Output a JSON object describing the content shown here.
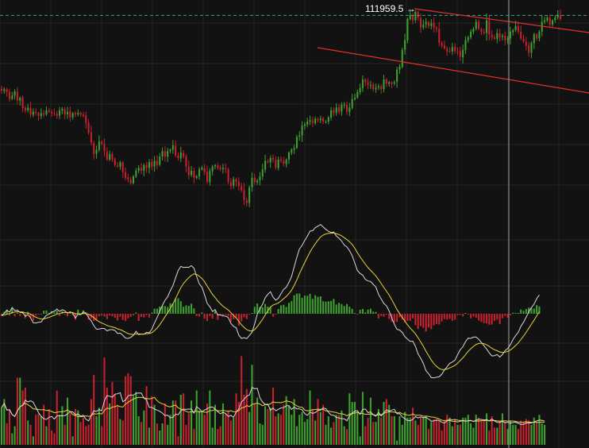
{
  "chart_data": [
    {
      "type": "candlestick",
      "panel": "price",
      "annotation": {
        "label": "111959.5",
        "arrow": "→"
      },
      "reference_line": {
        "style": "dashed",
        "color": "#2fa882",
        "value": 111959.5
      },
      "trend_channel": {
        "color": "#e03030"
      },
      "colors": {
        "up": "#3ea12f",
        "down": "#c8202f"
      },
      "grid": true,
      "closes": [
        106600,
        106700,
        106500,
        106000,
        106250,
        106550,
        105900,
        106100,
        105350,
        105200,
        105400,
        104900,
        105100,
        105000,
        104800,
        105000,
        104900,
        105200,
        105100,
        105000,
        104950,
        104800,
        105200,
        105300,
        104900,
        105100,
        104700,
        105000,
        104900,
        105000,
        104900,
        104800,
        104300,
        103600,
        102900,
        102100,
        102400,
        103000,
        102800,
        102300,
        101700,
        102100,
        101700,
        101300,
        101200,
        101500,
        100800,
        100400,
        100300,
        100000,
        100500,
        100900,
        101100,
        100900,
        101300,
        101100,
        101500,
        101200,
        101600,
        101300,
        101900,
        102300,
        101900,
        102300,
        102400,
        102700,
        102000,
        101800,
        102200,
        101900,
        101200,
        100600,
        100900,
        100400,
        100500,
        101000,
        101100,
        100800,
        100100,
        100900,
        101200,
        101300,
        101100,
        101000,
        101100,
        101000,
        100100,
        99800,
        100300,
        100100,
        99800,
        99500,
        98800,
        98600,
        99700,
        100400,
        100100,
        100200,
        100500,
        101000,
        101600,
        101500,
        101800,
        101700,
        101100,
        101700,
        101600,
        101400,
        101700,
        102200,
        102400,
        102500,
        103300,
        103400,
        104100,
        104200,
        104400,
        104500,
        104300,
        104600,
        104500,
        104600,
        104400,
        104400,
        104700,
        105200,
        105000,
        105400,
        105100,
        105600,
        105600,
        105100,
        105400,
        106000,
        106100,
        106500,
        106800,
        107400,
        107200,
        107000,
        107000,
        106700,
        106800,
        106900,
        106700,
        107400,
        107100,
        107200,
        107100,
        107200,
        108100,
        108300,
        109500,
        110200,
        111700,
        112000,
        111600,
        112200,
        111800,
        111100,
        111300,
        111500,
        111200,
        111400,
        111100,
        111000,
        110000,
        109800,
        109600,
        109400,
        109400,
        109700,
        109400,
        109400,
        109000,
        109500,
        110200,
        110400,
        110800,
        111000,
        111500,
        111000,
        110800,
        110700,
        111600,
        110600,
        110400,
        110300,
        110700,
        110400,
        110500,
        110200,
        110300,
        110800,
        110900,
        111200,
        110800,
        110300,
        110100,
        109800,
        109300,
        110000,
        110600,
        110300,
        110800,
        111500,
        111600,
        111800,
        111300,
        111600,
        111800,
        112000,
        111700
      ],
      "markers": [
        {
          "name": "macd",
          "histogram": [
            -0.45,
            0.42,
            0.88,
            -0.37,
            1.27,
            -0.56,
            0.23,
            -0.48,
            0.03,
            -0.95,
            0.4,
            -0.9,
            -1.44,
            -0.39,
            -0.18,
            -0.21,
            0.63,
            0.68,
            0.2,
            0.52,
            0.29,
            0.68,
            -0.46,
            0.55,
            -0.15,
            -0.54,
            0.41,
            -0.32,
            -1.24,
            0.86,
            -0.15,
            0.71,
            -0.22,
            -1.2,
            -0.98,
            -1.52,
            -1.36,
            -0.54,
            -0.37,
            -0.58,
            -1.13,
            -0.36,
            -0.53,
            -0.83,
            -1.39,
            -0.62,
            -1.3,
            -1.53,
            -0.98,
            -0.61,
            -0.34,
            0.25,
            -1.5,
            -0.63,
            -0.78,
            -0.27,
            -0.79,
            0.26,
            1.05,
            1.07,
            1.52,
            1.67,
            1.62,
            1.42,
            2.2,
            2.14,
            3.14,
            3.25,
            2.64,
            1.47,
            1.76,
            1.67,
            2.13,
            1.13,
            -0.5,
            -0.59,
            0.25,
            -1.04,
            -1.54,
            -0.47,
            -1.02,
            0.6,
            -1.25,
            -0.04,
            -0.33,
            -0.11,
            -0.48,
            -1.66,
            -1.17,
            -0.78,
            -2.51,
            -1.59,
            -0.73,
            -1.12,
            -0.09,
            0.07,
            1.46,
            2.16,
            1.44,
            1.38,
            2.06,
            1.5,
            1.36,
            -0.61,
            -0.17,
            1.01,
            1.76,
            1.87,
            1.43,
            2.29,
            2.68,
            3.88,
            4.23,
            4.25,
            3.34,
            3.82,
            3.78,
            4.18,
            3.13,
            3.89,
            3.54,
            3.66,
            2.62,
            2.54,
            2.62,
            2.69,
            3.11,
            1.94,
            2.29,
            2.03,
            1.62,
            2.04,
            1.47,
            1.04,
            0.12,
            -0.07,
            0.84,
            1.02,
            0.3,
            0.87,
            1.05,
            0.44,
            0.39,
            -0.98,
            -0.48,
            -0.62,
            -0.22,
            -1.1,
            -1.67,
            -1.85,
            -1.71,
            -0.77,
            -1.22,
            -1.8,
            -1.48,
            -1.51,
            -0.97,
            -2.38,
            -3.2,
            -2.59,
            -2.98,
            -3.72,
            -2.89,
            -3.23,
            -2.44,
            -2.15,
            -2.24,
            -1.6,
            -1.12,
            -1.22,
            -1.05,
            -1.49,
            -1.25,
            -0.28,
            -0.22,
            -0.55,
            0.16,
            -0.13,
            -0.96,
            -0.56,
            -0.84,
            -1.45,
            -1.71,
            -1.96,
            -2.02,
            -2.31,
            -2.25,
            -1.47,
            -1.23,
            -2.18,
            -0.93,
            -0.44,
            -0.83,
            -0.29,
            0.22,
            0.08,
            0.08,
            0.89,
            0.61,
            1.0,
            1.3,
            1.22,
            1.08,
            1.8,
            1.54
          ]
        },
        {
          "name": "volume",
          "values": [
            2.6,
            3.2,
            1.5,
            2.5,
            0.8,
            1.3,
            4.7,
            4.7,
            3.8,
            4.0,
            1.7,
            1.4,
            0.6,
            2.1,
            2.2,
            2.0,
            2.8,
            1.3,
            2.5,
            1.0,
            0.8,
            3.8,
            2.1,
            2.7,
            1.4,
            3.3,
            2.2,
            0.6,
            2.5,
            2.4,
            1.6,
            1.9,
            1.3,
            1.4,
            3.2,
            4.9,
            2.0,
            2.6,
            1.3,
            6.1,
            4.0,
            2.9,
            4.4,
            3.5,
            2.8,
            1.8,
            1.7,
            4.8,
            5.0,
            4.8,
            3.4,
            3.7,
            2.0,
            1.6,
            2.4,
            4.1,
            1.2,
            3.4,
            2.8,
            1.5,
            1.0,
            1.5,
            2.9,
            1.4,
            2.1,
            3.1,
            3.1,
            0.6,
            3.5,
            3.6,
            1.4,
            2.2,
            3.1,
            1.1,
            3.8,
            2.4,
            2.3,
            2.1,
            2.9,
            3.8,
            1.2,
            2.8,
            1.1,
            1.3,
            2.9,
            2.2,
            2.4,
            1.7,
            1.9,
            3.6,
            3.0,
            6.2,
            3.5,
            3.9,
            2.3,
            5.6,
            2.9,
            3.3,
            1.5,
            1.4,
            2.7,
            2.5,
            2.6,
            4.0,
            2.0,
            2.2,
            2.1,
            2.8,
            3.4,
            2.7,
            2.1,
            3.2,
            1.3,
            2.1,
            2.3,
            1.6,
            1.8,
            3.8,
            2.5,
            1.7,
            3.2,
            2.3,
            2.8,
            1.4,
            2.0,
            1.2,
            1.6,
            2.1,
            2.1,
            2.4,
            1.3,
            1.1,
            3.6,
            3.0,
            3.0,
            2.3,
            0.6,
            3.7,
            1.3,
            1.9,
            3.3,
            1.6,
            1.6,
            2.5,
            1.9,
            3.0,
            3.2,
            2.8,
            2.0,
            2.0,
            0.3,
            2.0,
            1.4,
            2.3,
            1.9,
            1.9,
            2.6,
            1.7,
            1.4,
            1.9,
            1.9,
            2.0,
            1.1,
            1.6,
            1.8,
            1.8,
            1.7,
            1.0,
            1.7,
            2.1,
            1.9,
            1.3,
            1.8,
            1.4,
            1.4,
            1.9,
            1.9,
            2.1,
            1.5,
            1.2,
            2.1,
            1.9,
            1.7,
            1.7,
            2.2,
            1.0,
            2.0,
            1.2,
            1.2,
            1.7,
            2.2,
            1.6,
            1.1,
            1.7,
            1.4,
            1.4,
            1.1,
            1.7,
            1.6,
            1.8,
            1.7,
            1.4,
            1.9,
            1.6,
            2.1,
            1.5,
            1.4
          ]
        }
      ]
    }
  ]
}
